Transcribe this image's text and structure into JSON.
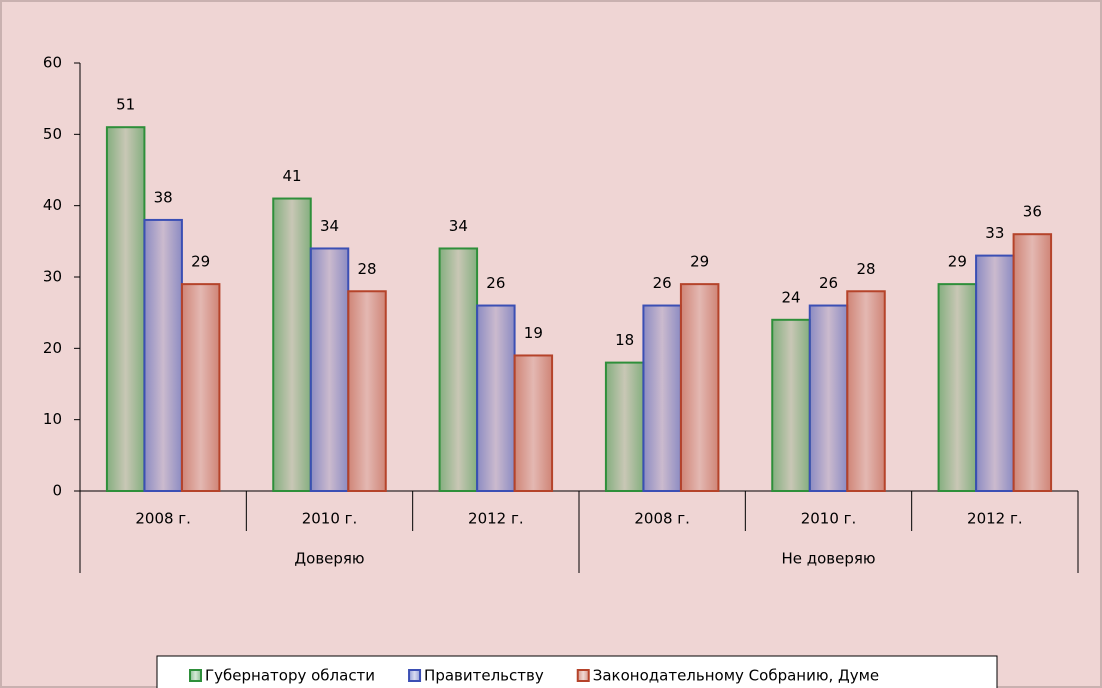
{
  "chart_data": {
    "type": "bar",
    "categories": [
      "2008 г.",
      "2010 г.",
      "2012 г.",
      "2008 г.",
      "2010 г.",
      "2012 г."
    ],
    "groups": [
      "Доверяю",
      "Не доверяю"
    ],
    "series": [
      {
        "name": "Губернатору области",
        "color": "#2e8f3a",
        "values": [
          51,
          41,
          34,
          18,
          24,
          29
        ]
      },
      {
        "name": "Правительству",
        "color": "#3b4fb4",
        "values": [
          38,
          34,
          26,
          26,
          26,
          33
        ]
      },
      {
        "name": "Законодательному Собранию, Думе",
        "color": "#b5432a",
        "values": [
          29,
          28,
          19,
          29,
          28,
          36
        ]
      }
    ],
    "ylim": [
      0,
      60
    ],
    "yticks": [
      0,
      10,
      20,
      30,
      40,
      50,
      60
    ]
  }
}
